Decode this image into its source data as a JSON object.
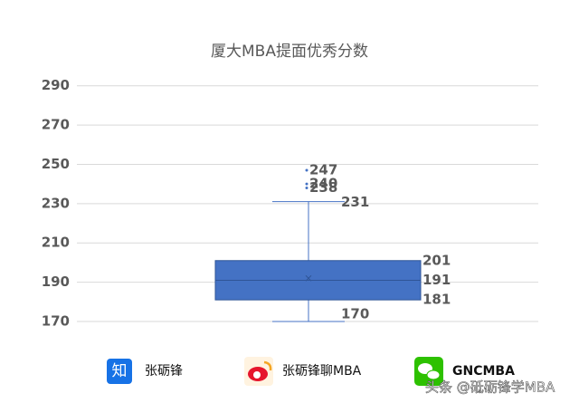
{
  "chart_data": {
    "type": "box",
    "title": "厦大MBA提面优秀分数",
    "boxes": [
      {
        "min": 170,
        "q1": 181,
        "median": 191,
        "q3": 201,
        "max": 231,
        "mean": 192,
        "outliers": [
          247,
          240,
          238
        ]
      }
    ],
    "color": "#4472c4",
    "ylim": [
      170,
      300
    ],
    "yticks": [
      170,
      190,
      210,
      230,
      250,
      270,
      290
    ],
    "grid": true
  },
  "footer": {
    "items": [
      {
        "icon": "知",
        "text": "张砺锋"
      },
      {
        "text": "张砺锋聊MBA"
      },
      {
        "text": "GNCMBA"
      }
    ],
    "watermark": "头条 @砥砺锋学MBA"
  }
}
